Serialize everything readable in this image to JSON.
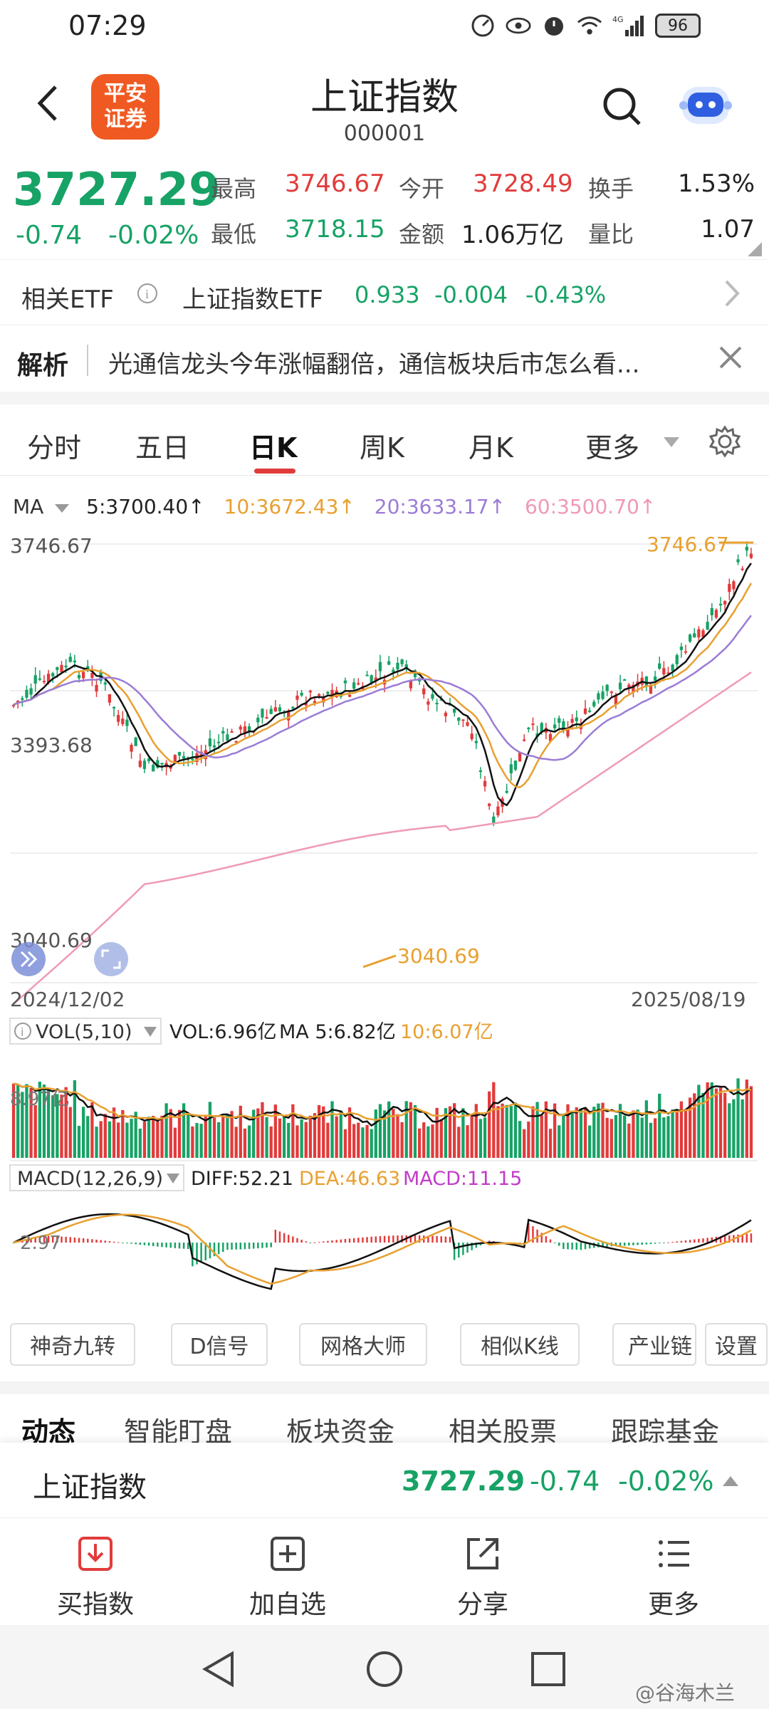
{
  "status_bar": {
    "time": "07:29",
    "battery": "96",
    "network": "4G"
  },
  "header": {
    "title": "上证指数",
    "code": "000001",
    "broker_logo": "平安\n证券"
  },
  "quote": {
    "price": "3727.29",
    "change": "-0.74",
    "change_pct": "-0.02%",
    "high_label": "最高",
    "high": "3746.67",
    "low_label": "最低",
    "low": "3718.15",
    "open_label": "今开",
    "open": "3728.49",
    "amount_label": "金额",
    "amount": "1.06万亿",
    "turnover_label": "换手",
    "turnover": "1.53%",
    "vol_ratio_label": "量比",
    "vol_ratio": "1.07"
  },
  "etf": {
    "label": "相关ETF",
    "name": "上证指数ETF",
    "price": "0.933",
    "change": "-0.004",
    "change_pct": "-0.43%"
  },
  "news": {
    "label": "解析",
    "text": "光通信龙头今年涨幅翻倍，通信板块后市怎么看..."
  },
  "period_tabs": [
    "分时",
    "五日",
    "日K",
    "周K",
    "月K",
    "更多"
  ],
  "ma_legend": {
    "label": "MA",
    "ma5": "5:3700.40↑",
    "ma10": "10:3672.43↑",
    "ma20": "20:3633.17↑",
    "ma60": "60:3500.70↑"
  },
  "chart": {
    "y_top": "3746.67",
    "y_mid": "3393.68",
    "y_bottom": "3040.69",
    "high_marker": "3746.67",
    "low_marker": "3040.69",
    "start_date": "2024/12/02",
    "end_date": "2025/08/19"
  },
  "volume": {
    "label": "VOL(5,10)",
    "vol": "VOL:6.96亿",
    "ma5": "MA 5:6.82亿",
    "ma10": "10:6.07亿",
    "axis": "8.97亿"
  },
  "macd": {
    "label": "MACD(12,26,9)",
    "diff": "DIFF:52.21",
    "dea": "DEA:46.63",
    "macd": "MACD:11.15",
    "axis": "2.97"
  },
  "tool_buttons": [
    "神奇九转",
    "D信号",
    "网格大师",
    "相似K线",
    "产业链",
    "设置"
  ],
  "info_tabs": [
    "动态",
    "智能盯盘",
    "板块资金",
    "相关股票",
    "跟踪基金"
  ],
  "bottom_quote": {
    "name": "上证指数",
    "price": "3727.29",
    "change": "-0.74",
    "change_pct": "-0.02%"
  },
  "actions": [
    "买指数",
    "加自选",
    "分享",
    "更多"
  ],
  "watermark": "@谷海木兰",
  "colors": {
    "up": "#e23b3b",
    "down": "#17a266",
    "ma5": "#111111",
    "ma10": "#e8a030",
    "ma20": "#9b7cd6",
    "ma60": "#ef9ab5",
    "accent": "#e23b3b"
  }
}
